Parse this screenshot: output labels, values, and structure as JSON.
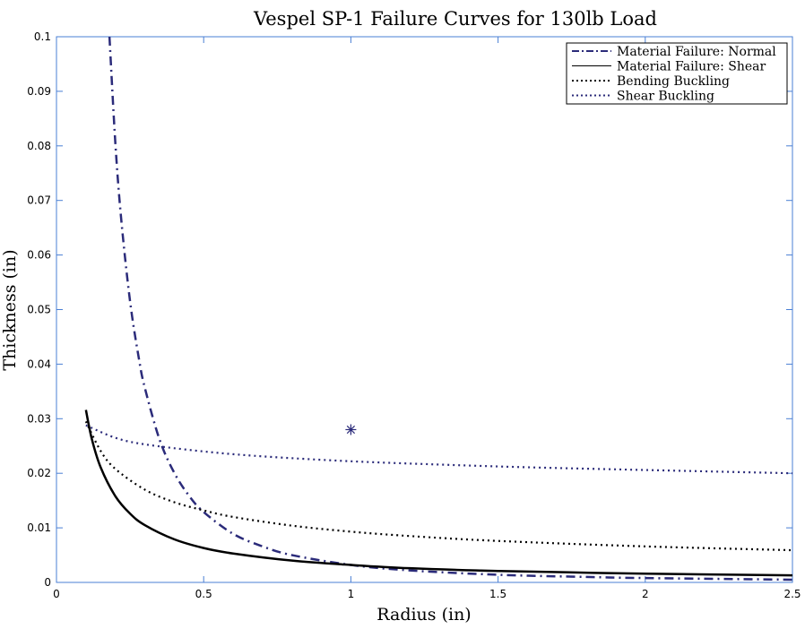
{
  "chart_data": {
    "type": "line",
    "title": "Vespel SP-1 Failure Curves for 130lb Load",
    "xlabel": "Radius (in)",
    "ylabel": "Thickness (in)",
    "xlim": [
      0,
      2.5
    ],
    "ylim": [
      0,
      0.1
    ],
    "xticks": [
      0,
      0.5,
      1,
      1.5,
      2,
      2.5
    ],
    "xtick_labels": [
      "0",
      "0.5",
      "1",
      "1.5",
      "2",
      "2.5"
    ],
    "yticks": [
      0,
      0.01,
      0.02,
      0.03,
      0.04,
      0.05,
      0.06,
      0.07,
      0.08,
      0.09,
      0.1
    ],
    "ytick_labels": [
      "0",
      "0.01",
      "0.02",
      "0.03",
      "0.04",
      "0.05",
      "0.06",
      "0.07",
      "0.08",
      "0.09",
      "0.1"
    ],
    "grid": false,
    "legend_position": "top-right",
    "series": [
      {
        "name": "Material Failure: Normal",
        "color": "#2b2b7a",
        "style": "dash-dot",
        "x": [
          0.18,
          0.2,
          0.22,
          0.25,
          0.28,
          0.3,
          0.35,
          0.4,
          0.45,
          0.5,
          0.6,
          0.7,
          0.8,
          1.0,
          1.2,
          1.5,
          1.8,
          2.0,
          2.5
        ],
        "y": [
          0.1,
          0.0805,
          0.0665,
          0.0515,
          0.041,
          0.0357,
          0.0262,
          0.0201,
          0.0159,
          0.0129,
          0.0089,
          0.0066,
          0.005,
          0.0032,
          0.0022,
          0.0014,
          0.001,
          0.0008,
          0.0005
        ]
      },
      {
        "name": "Material Failure: Shear",
        "color": "#000000",
        "style": "solid",
        "x": [
          0.1,
          0.12,
          0.15,
          0.2,
          0.25,
          0.3,
          0.4,
          0.5,
          0.6,
          0.8,
          1.0,
          1.2,
          1.5,
          2.0,
          2.5
        ],
        "y": [
          0.0316,
          0.0263,
          0.0211,
          0.0158,
          0.0126,
          0.0105,
          0.0079,
          0.0063,
          0.0053,
          0.004,
          0.0032,
          0.0026,
          0.0021,
          0.0016,
          0.0013
        ]
      },
      {
        "name": "Bending Buckling",
        "color": "#000000",
        "style": "dotted",
        "x": [
          0.1,
          0.15,
          0.2,
          0.3,
          0.4,
          0.5,
          0.6,
          0.8,
          1.0,
          1.2,
          1.5,
          2.0,
          2.5
        ],
        "y": [
          0.0295,
          0.0241,
          0.0208,
          0.017,
          0.0147,
          0.0132,
          0.012,
          0.0104,
          0.0093,
          0.0085,
          0.0076,
          0.0066,
          0.0059
        ]
      },
      {
        "name": "Shear Buckling",
        "color": "#2b2b7a",
        "style": "dotted",
        "x": [
          0.1,
          0.2,
          0.3,
          0.5,
          0.7,
          1.0,
          1.3,
          1.6,
          2.0,
          2.5
        ],
        "y": [
          0.0288,
          0.0265,
          0.0253,
          0.024,
          0.0231,
          0.0222,
          0.0216,
          0.0211,
          0.0206,
          0.02
        ]
      }
    ],
    "markers": [
      {
        "x": 1.0,
        "y": 0.028,
        "symbol": "asterisk",
        "color": "#2b2b7a"
      }
    ]
  }
}
